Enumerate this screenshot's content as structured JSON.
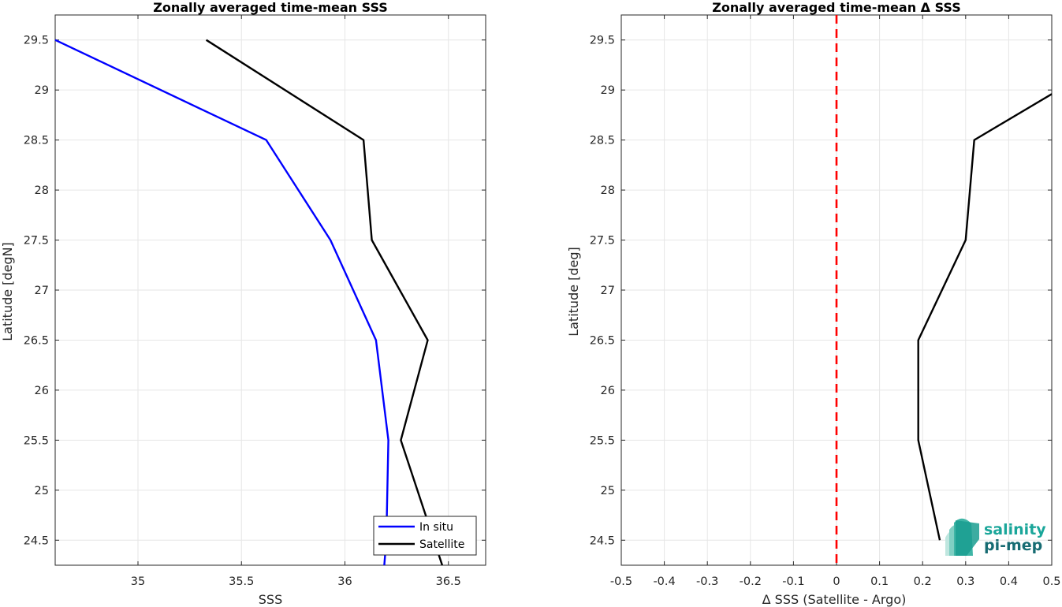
{
  "chart_data": [
    {
      "type": "line",
      "title": "Zonally averaged time-mean SSS",
      "xlabel": "SSS",
      "ylabel": "Latitude [degN]",
      "xlim": [
        34.6,
        36.68
      ],
      "ylim": [
        24.25,
        29.75
      ],
      "xticks": [
        35,
        35.5,
        36,
        36.5
      ],
      "xtick_labels": [
        "35",
        "35.5",
        "36",
        "36.5"
      ],
      "yticks": [
        24.5,
        25,
        25.5,
        26,
        26.5,
        27,
        27.5,
        28,
        28.5,
        29,
        29.5
      ],
      "ytick_labels": [
        "24.5",
        "25",
        "25.5",
        "26",
        "26.5",
        "27",
        "27.5",
        "28",
        "28.5",
        "29",
        "29.5"
      ],
      "grid": true,
      "legend_position": "bottom-right",
      "series": [
        {
          "name": "In situ",
          "color": "#0000ff",
          "x": [
            36.19,
            36.2,
            36.21,
            36.15,
            35.93,
            35.62,
            34.6
          ],
          "y": [
            24.25,
            24.5,
            25.5,
            26.5,
            27.5,
            28.5,
            29.5
          ]
        },
        {
          "name": "Satellite",
          "color": "#000000",
          "x": [
            36.47,
            36.27,
            36.4,
            36.13,
            36.09,
            35.33
          ],
          "y": [
            24.25,
            25.5,
            26.5,
            27.5,
            28.5,
            29.5
          ]
        }
      ]
    },
    {
      "type": "line",
      "title": "Zonally averaged time-mean Δ SSS",
      "xlabel": "Δ SSS (Satellite - Argo)",
      "ylabel": "Latitude [deg]",
      "xlim": [
        -0.5,
        0.5
      ],
      "ylim": [
        24.25,
        29.75
      ],
      "xticks": [
        -0.5,
        -0.4,
        -0.3,
        -0.2,
        -0.1,
        0,
        0.1,
        0.2,
        0.3,
        0.4,
        0.5
      ],
      "xtick_labels": [
        "-0.5",
        "-0.4",
        "-0.3",
        "-0.2",
        "-0.1",
        "0",
        "0.1",
        "0.2",
        "0.3",
        "0.4",
        "0.5"
      ],
      "yticks": [
        24.5,
        25,
        25.5,
        26,
        26.5,
        27,
        27.5,
        28,
        28.5,
        29,
        29.5
      ],
      "ytick_labels": [
        "24.5",
        "25",
        "25.5",
        "26",
        "26.5",
        "27",
        "27.5",
        "28",
        "28.5",
        "29",
        "29.5"
      ],
      "grid": true,
      "zero_line": {
        "x": 0,
        "color": "#ff0000",
        "style": "dashed"
      },
      "series": [
        {
          "color": "#000000",
          "x": [
            0.24,
            0.19,
            0.19,
            0.3,
            0.32,
            0.5
          ],
          "y": [
            24.5,
            25.5,
            26.5,
            27.5,
            28.5,
            28.96
          ]
        }
      ]
    }
  ],
  "logo": {
    "line1": "salinity",
    "line2": "pi-mep"
  }
}
